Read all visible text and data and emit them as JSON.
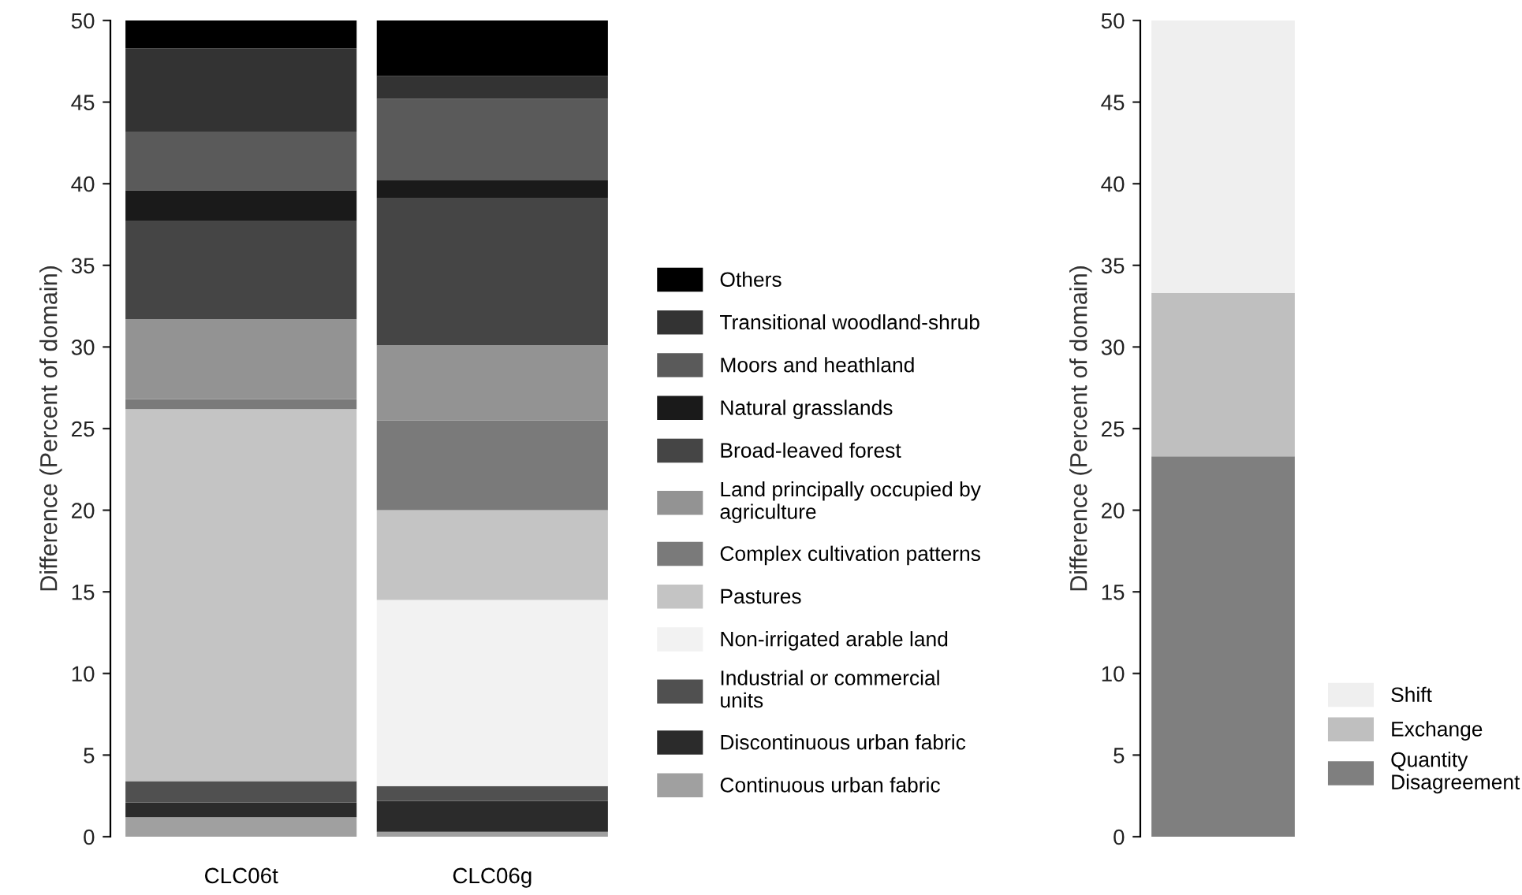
{
  "chart_data": [
    {
      "type": "bar",
      "stacked": true,
      "ylabel": "Difference (Percent of domain)",
      "categories": [
        "CLC06t",
        "CLC06g"
      ],
      "ylim": [
        0,
        50
      ],
      "yticks": [
        0,
        5,
        10,
        15,
        20,
        25,
        30,
        35,
        40,
        45,
        50
      ],
      "legend": "right",
      "grid": false,
      "series": [
        {
          "name": "Continuous urban fabric",
          "color": "#a0a0a0",
          "values": [
            1.2,
            0.3
          ]
        },
        {
          "name": "Discontinuous urban fabric",
          "color": "#2b2b2b",
          "values": [
            0.9,
            1.9
          ]
        },
        {
          "name": "Industrial or commercial units",
          "color": "#505050",
          "values": [
            1.3,
            0.9
          ]
        },
        {
          "name": "Non-irrigated arable land",
          "color": "#f2f2f2",
          "values": [
            0,
            11.4
          ]
        },
        {
          "name": "Pastures",
          "color": "#c4c4c4",
          "values": [
            22.8,
            5.5
          ]
        },
        {
          "name": "Complex cultivation patterns",
          "color": "#7a7a7a",
          "values": [
            0.6,
            5.5
          ]
        },
        {
          "name": "Land principally occupied by agriculture",
          "color": "#939393",
          "values": [
            4.9,
            4.6
          ]
        },
        {
          "name": "Broad-leaved forest",
          "color": "#454545",
          "values": [
            6.0,
            9.0
          ]
        },
        {
          "name": "Natural grasslands",
          "color": "#1a1a1a",
          "values": [
            1.9,
            1.1
          ]
        },
        {
          "name": "Moors and heathland",
          "color": "#5a5a5a",
          "values": [
            3.6,
            5.0
          ]
        },
        {
          "name": "Transitional woodland-shrub",
          "color": "#333333",
          "values": [
            5.1,
            1.4
          ]
        },
        {
          "name": "Others",
          "color": "#000000",
          "values": [
            1.7,
            3.4
          ]
        }
      ]
    },
    {
      "type": "bar",
      "stacked": true,
      "ylabel": "Difference (Percent of domain)",
      "categories": [
        null
      ],
      "ylim": [
        0,
        50
      ],
      "yticks": [
        0,
        5,
        10,
        15,
        20,
        25,
        30,
        35,
        40,
        45,
        50
      ],
      "legend": "bottom right",
      "grid": false,
      "series": [
        {
          "name": "Quantity Disagreement",
          "color": "#7f7f7f",
          "values": [
            23.3
          ]
        },
        {
          "name": "Exchange",
          "color": "#bfbfbf",
          "values": [
            10.0
          ]
        },
        {
          "name": "Shift",
          "color": "#efefef",
          "values": [
            16.7
          ]
        }
      ]
    }
  ]
}
